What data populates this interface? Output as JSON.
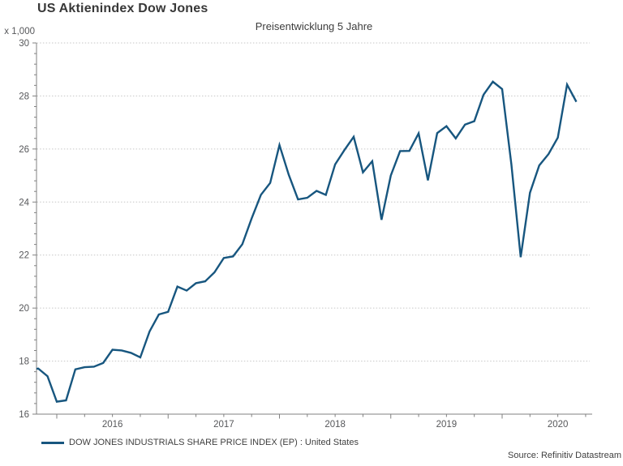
{
  "header": {
    "title": "US Aktienindex Dow Jones",
    "subtitle": "Preisentwicklung 5 Jahre"
  },
  "y_axis": {
    "unit_label": "x 1,000"
  },
  "legend": {
    "series_label": "DOW JONES INDUSTRIALS SHARE PRICE INDEX (EP) : United States"
  },
  "source_note": "Source: Refinitiv Datastream",
  "colors": {
    "line": "#17567F",
    "axis": "#808080",
    "gridline": "#c6c6c6",
    "tick_text": "#56575a"
  },
  "chart_data": {
    "type": "line",
    "title": "US Aktienindex Dow Jones",
    "subtitle": "Preisentwicklung 5 Jahre",
    "y_unit_label": "x 1,000",
    "xlabel": "",
    "ylabel": "",
    "ylim": [
      16,
      30
    ],
    "y_ticks": [
      16,
      18,
      20,
      22,
      24,
      26,
      28,
      30
    ],
    "y_minor_tick_step": 0.4,
    "x_tick_labels": [
      "2016",
      "2017",
      "2018",
      "2019",
      "2020"
    ],
    "grid": "horizontal-dotted",
    "legend_position": "bottom-left",
    "source": "Source: Refinitiv Datastream",
    "series": [
      {
        "name": "DOW JONES INDUSTRIALS SHARE PRICE INDEX (EP) : United States",
        "color": "#17567F",
        "frequency": "monthly",
        "x_start": "2015-10",
        "x_end": "2020-09",
        "values": [
          17.66,
          17.72,
          17.43,
          16.47,
          16.52,
          17.69,
          17.77,
          17.79,
          17.93,
          18.43,
          18.4,
          18.31,
          18.14,
          19.12,
          19.76,
          19.86,
          20.81,
          20.66,
          20.94,
          21.01,
          21.35,
          21.89,
          21.95,
          22.41,
          23.38,
          24.27,
          24.72,
          26.15,
          25.03,
          24.1,
          24.16,
          24.42,
          24.27,
          25.42,
          25.96,
          26.46,
          25.12,
          25.54,
          23.33,
          25.0,
          25.92,
          25.93,
          26.59,
          24.82,
          26.6,
          26.86,
          26.4,
          26.92,
          27.05,
          28.05,
          28.54,
          28.26,
          25.41,
          21.92,
          24.35,
          25.38,
          25.81,
          26.43,
          28.43,
          27.78
        ]
      }
    ]
  }
}
